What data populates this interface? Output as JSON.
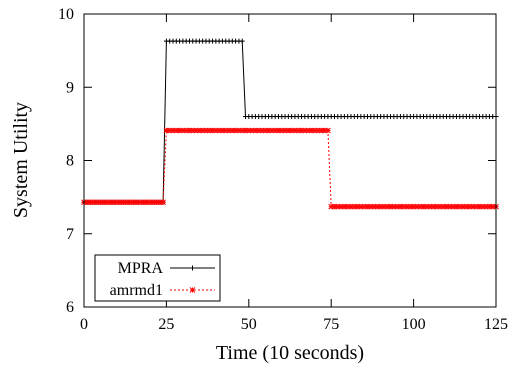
{
  "chart_data": {
    "type": "line",
    "title": "",
    "xlabel": "Time (10 seconds)",
    "ylabel": "System Utility",
    "xlim": [
      0,
      125
    ],
    "ylim": [
      6,
      10
    ],
    "xticks": [
      0,
      25,
      50,
      75,
      100,
      125
    ],
    "yticks": [
      6,
      7,
      8,
      9,
      10
    ],
    "grid": false,
    "legend_position": "bottom-left",
    "series": [
      {
        "name": "MPRA",
        "color": "#000000",
        "line_style": "solid",
        "marker": "plus",
        "segments": [
          {
            "x_start": 0,
            "x_end": 24,
            "y": 7.43
          },
          {
            "x_start": 25,
            "x_end": 48,
            "y": 9.63
          },
          {
            "x_start": 49,
            "x_end": 125,
            "y": 8.6
          }
        ]
      },
      {
        "name": "amrmd1",
        "color": "#ff0000",
        "line_style": "dotted",
        "marker": "asterisk",
        "segments": [
          {
            "x_start": 0,
            "x_end": 24,
            "y": 7.43
          },
          {
            "x_start": 25,
            "x_end": 74,
            "y": 8.41
          },
          {
            "x_start": 75,
            "x_end": 125,
            "y": 7.37
          }
        ]
      }
    ]
  }
}
